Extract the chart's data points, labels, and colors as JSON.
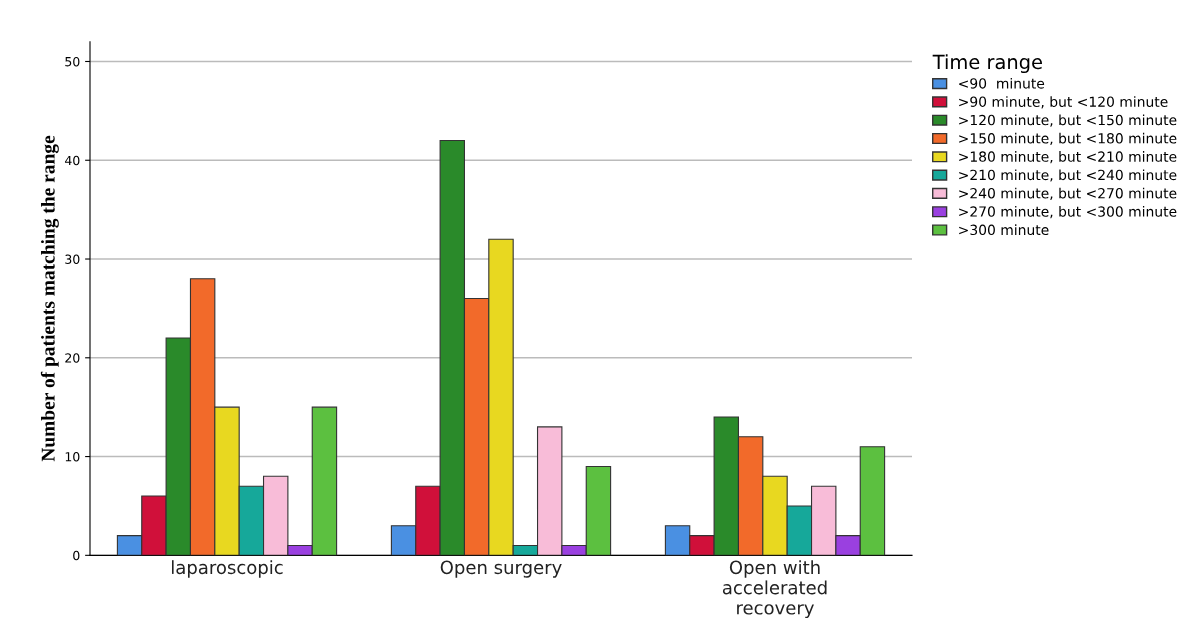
{
  "chart_data": {
    "type": "bar",
    "ylabel": "Number of patients matching the range",
    "legend_title": "Time range",
    "categories": [
      "laparoscopic",
      "Open surgery",
      "Open with\naccelerated\nrecovery"
    ],
    "ylim": [
      0,
      52
    ],
    "yticks": [
      0,
      10,
      20,
      30,
      40,
      50
    ],
    "grid": "y",
    "legend": "right",
    "series": [
      {
        "name": "<90  minute",
        "color": "#4a90e2",
        "values": [
          2,
          3,
          3
        ]
      },
      {
        "name": ">90 minute, but <120 minute",
        "color": "#d0103a",
        "values": [
          6,
          7,
          2
        ]
      },
      {
        "name": ">120 minute, but <150 minute",
        "color": "#2a8a2a",
        "values": [
          22,
          42,
          14
        ]
      },
      {
        "name": ">150 minute, but <180 minute",
        "color": "#f26a2a",
        "values": [
          28,
          26,
          12
        ]
      },
      {
        "name": ">180 minute, but <210 minute",
        "color": "#e8d820",
        "values": [
          15,
          32,
          8
        ]
      },
      {
        "name": ">210 minute, but <240 minute",
        "color": "#16a89a",
        "values": [
          7,
          1,
          5
        ]
      },
      {
        "name": ">240 minute, but <270 minute",
        "color": "#f8bcd8",
        "values": [
          8,
          13,
          7
        ]
      },
      {
        "name": ">270 minute, but <300 minute",
        "color": "#9a40e0",
        "values": [
          1,
          1,
          2
        ]
      },
      {
        "name": ">300 minute",
        "color": "#5cc040",
        "values": [
          15,
          9,
          11
        ]
      }
    ]
  }
}
